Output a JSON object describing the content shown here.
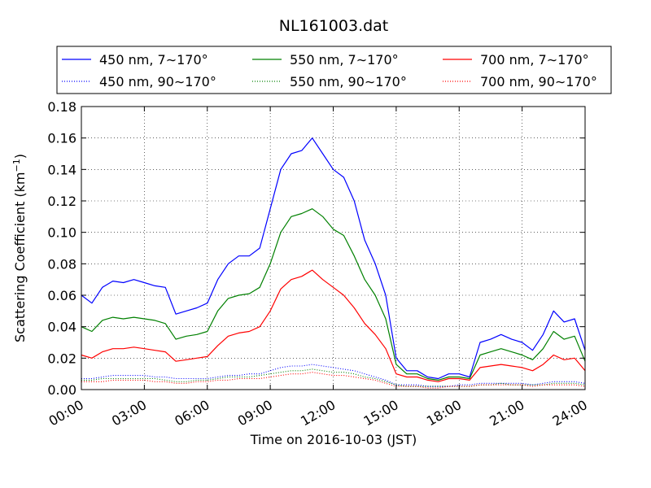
{
  "chart_data": {
    "type": "line",
    "title": "NL161003.dat",
    "xlabel": "Time on 2016-10-03 (JST)",
    "ylabel": "Scattering Coefficient (km",
    "ylabel_sup": "−1",
    "ylabel_end": ")",
    "xlim": [
      0,
      24
    ],
    "ylim": [
      0,
      0.18
    ],
    "xticks": [
      0,
      3,
      6,
      9,
      12,
      15,
      18,
      21,
      24
    ],
    "xtick_labels": [
      "00:00",
      "03:00",
      "06:00",
      "09:00",
      "12:00",
      "15:00",
      "18:00",
      "21:00",
      "24:00"
    ],
    "yticks": [
      0,
      0.02,
      0.04,
      0.06,
      0.08,
      0.1,
      0.12,
      0.14,
      0.16,
      0.18
    ],
    "ytick_labels": [
      "0.00",
      "0.02",
      "0.04",
      "0.06",
      "0.08",
      "0.10",
      "0.12",
      "0.14",
      "0.16",
      "0.18"
    ],
    "grid": true,
    "legend_position": "top",
    "colors": {
      "blue": "#0000ff",
      "green": "#008000",
      "red": "#ff0000"
    },
    "x": [
      0,
      0.5,
      1,
      1.5,
      2,
      2.5,
      3,
      3.5,
      4,
      4.5,
      5,
      5.5,
      6,
      6.5,
      7,
      7.5,
      8,
      8.5,
      9,
      9.5,
      10,
      10.5,
      11,
      11.5,
      12,
      12.5,
      13,
      13.5,
      14,
      14.5,
      15,
      15.5,
      16,
      16.5,
      17,
      17.5,
      18,
      18.5,
      19,
      19.5,
      20,
      20.5,
      21,
      21.5,
      22,
      22.5,
      23,
      23.5,
      24
    ],
    "series": [
      {
        "name": "450 nm, 7∼170°",
        "color": "#0000ff",
        "style": "solid",
        "values": [
          0.06,
          0.055,
          0.065,
          0.069,
          0.068,
          0.07,
          0.068,
          0.066,
          0.065,
          0.048,
          0.05,
          0.052,
          0.055,
          0.07,
          0.08,
          0.085,
          0.085,
          0.09,
          0.115,
          0.14,
          0.15,
          0.152,
          0.16,
          0.15,
          0.14,
          0.135,
          0.12,
          0.095,
          0.08,
          0.06,
          0.02,
          0.012,
          0.012,
          0.008,
          0.007,
          0.01,
          0.01,
          0.008,
          0.03,
          0.032,
          0.035,
          0.032,
          0.03,
          0.025,
          0.035,
          0.05,
          0.043,
          0.045,
          0.025
        ]
      },
      {
        "name": "450 nm, 90∼170°",
        "color": "#0000ff",
        "style": "dotted",
        "values": [
          0.007,
          0.007,
          0.008,
          0.009,
          0.009,
          0.009,
          0.009,
          0.008,
          0.008,
          0.007,
          0.007,
          0.007,
          0.007,
          0.008,
          0.009,
          0.009,
          0.01,
          0.01,
          0.012,
          0.014,
          0.015,
          0.015,
          0.016,
          0.015,
          0.014,
          0.013,
          0.012,
          0.01,
          0.008,
          0.006,
          0.003,
          0.003,
          0.003,
          0.002,
          0.002,
          0.002,
          0.003,
          0.003,
          0.004,
          0.004,
          0.004,
          0.004,
          0.004,
          0.003,
          0.004,
          0.005,
          0.005,
          0.005,
          0.004
        ]
      },
      {
        "name": "550 nm, 7∼170°",
        "color": "#008000",
        "style": "solid",
        "values": [
          0.04,
          0.037,
          0.044,
          0.046,
          0.045,
          0.046,
          0.045,
          0.044,
          0.042,
          0.032,
          0.034,
          0.035,
          0.037,
          0.05,
          0.058,
          0.06,
          0.061,
          0.065,
          0.08,
          0.1,
          0.11,
          0.112,
          0.115,
          0.11,
          0.102,
          0.098,
          0.085,
          0.07,
          0.06,
          0.045,
          0.016,
          0.01,
          0.01,
          0.007,
          0.006,
          0.008,
          0.008,
          0.007,
          0.022,
          0.024,
          0.026,
          0.024,
          0.022,
          0.019,
          0.026,
          0.037,
          0.032,
          0.034,
          0.018
        ]
      },
      {
        "name": "550 nm, 90∼170°",
        "color": "#008000",
        "style": "dotted",
        "values": [
          0.006,
          0.006,
          0.007,
          0.007,
          0.007,
          0.007,
          0.007,
          0.007,
          0.006,
          0.005,
          0.005,
          0.006,
          0.006,
          0.007,
          0.008,
          0.008,
          0.008,
          0.009,
          0.01,
          0.011,
          0.012,
          0.012,
          0.013,
          0.012,
          0.011,
          0.011,
          0.01,
          0.008,
          0.007,
          0.005,
          0.003,
          0.002,
          0.002,
          0.002,
          0.002,
          0.002,
          0.002,
          0.002,
          0.003,
          0.003,
          0.004,
          0.003,
          0.003,
          0.003,
          0.003,
          0.004,
          0.004,
          0.004,
          0.003
        ]
      },
      {
        "name": "700 nm, 7∼170°",
        "color": "#ff0000",
        "style": "solid",
        "values": [
          0.022,
          0.02,
          0.024,
          0.026,
          0.026,
          0.027,
          0.026,
          0.025,
          0.024,
          0.018,
          0.019,
          0.02,
          0.021,
          0.028,
          0.034,
          0.036,
          0.037,
          0.04,
          0.05,
          0.064,
          0.07,
          0.072,
          0.076,
          0.07,
          0.065,
          0.06,
          0.052,
          0.042,
          0.035,
          0.026,
          0.01,
          0.008,
          0.008,
          0.006,
          0.005,
          0.007,
          0.007,
          0.006,
          0.014,
          0.015,
          0.016,
          0.015,
          0.014,
          0.012,
          0.016,
          0.022,
          0.019,
          0.02,
          0.012
        ]
      },
      {
        "name": "700 nm, 90∼170°",
        "color": "#ff0000",
        "style": "dotted",
        "values": [
          0.005,
          0.005,
          0.005,
          0.006,
          0.006,
          0.006,
          0.006,
          0.005,
          0.005,
          0.004,
          0.004,
          0.005,
          0.005,
          0.006,
          0.006,
          0.007,
          0.007,
          0.007,
          0.008,
          0.009,
          0.01,
          0.01,
          0.011,
          0.01,
          0.009,
          0.009,
          0.008,
          0.007,
          0.006,
          0.004,
          0.002,
          0.002,
          0.002,
          0.001,
          0.001,
          0.002,
          0.002,
          0.002,
          0.003,
          0.003,
          0.003,
          0.003,
          0.003,
          0.002,
          0.003,
          0.003,
          0.003,
          0.003,
          0.002
        ]
      }
    ]
  }
}
